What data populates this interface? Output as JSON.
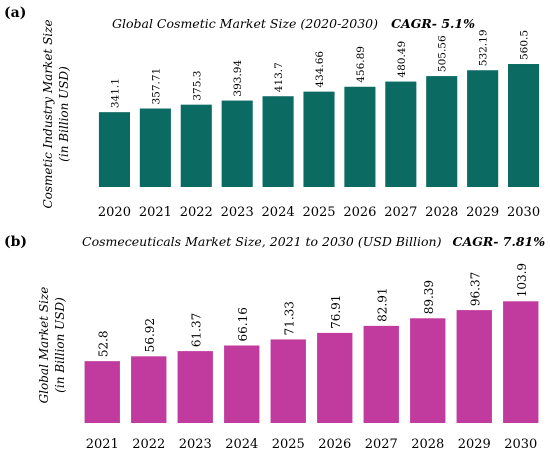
{
  "chart_data": [
    {
      "panel": "(a)",
      "type": "bar",
      "title": "Global Cosmetic Market Size (2020-2030)",
      "title_emphasis": "CAGR- 5.1%",
      "ylabel": [
        "Cosmetic Industry Market Size",
        "(in Billion USD)"
      ],
      "xlabel": "",
      "categories": [
        "2020",
        "2021",
        "2022",
        "2023",
        "2024",
        "2025",
        "2026",
        "2027",
        "2028",
        "2029",
        "2030"
      ],
      "values": [
        341.1,
        357.71,
        375.3,
        393.94,
        413.7,
        434.66,
        456.89,
        480.49,
        505.56,
        532.19,
        560.5
      ],
      "value_labels": [
        "341.1",
        "357.71",
        "375.3",
        "393.94",
        "413.7",
        "434.66",
        "456.89",
        "480.49",
        "505.56",
        "532.19",
        "560.5"
      ],
      "ylim": [
        0,
        670
      ],
      "bar_color": "#0b6b62",
      "grid": false,
      "legend": "none"
    },
    {
      "panel": "(b)",
      "type": "bar",
      "title": "Cosmeceuticals  Market Size, 2021 to 2030 (USD Billion)",
      "title_emphasis": "CAGR- 7.81%",
      "ylabel": [
        "Global Market Size",
        "(in Billion USD)"
      ],
      "xlabel": "",
      "categories": [
        "2021",
        "2022",
        "2023",
        "2024",
        "2025",
        "2026",
        "2027",
        "2028",
        "2029",
        "2030"
      ],
      "values": [
        52.8,
        56.92,
        61.37,
        66.16,
        71.33,
        76.91,
        82.91,
        89.39,
        96.37,
        103.9
      ],
      "value_labels": [
        "52.8",
        "56.92",
        "61.37",
        "66.16",
        "71.33",
        "76.91",
        "82.91",
        "89.39",
        "96.37",
        "103.9"
      ],
      "ylim": [
        0,
        140
      ],
      "bar_color": "#c13b9e",
      "grid": false,
      "legend": "none"
    }
  ]
}
